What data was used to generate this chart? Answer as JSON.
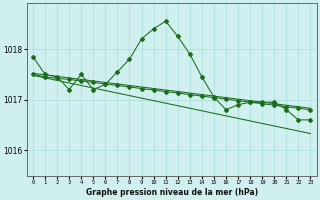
{
  "title": "Graphe pression niveau de la mer (hPa)",
  "background_color": "#d0f0f0",
  "grid_color": "#b0dede",
  "line_color": "#1a6b1a",
  "x_labels": [
    "0",
    "1",
    "2",
    "3",
    "4",
    "5",
    "6",
    "7",
    "8",
    "9",
    "10",
    "11",
    "12",
    "13",
    "14",
    "15",
    "16",
    "17",
    "18",
    "19",
    "20",
    "21",
    "22",
    "23"
  ],
  "ylim": [
    1015.5,
    1018.9
  ],
  "yticks": [
    1016,
    1017,
    1018
  ],
  "series": [
    [
      1017.85,
      1017.5,
      1017.45,
      1017.2,
      1017.5,
      1017.2,
      1017.3,
      1017.55,
      1017.8,
      1018.2,
      1018.4,
      1018.55,
      1018.25,
      1017.9,
      1017.45,
      1017.05,
      1016.8,
      1016.9,
      1016.95,
      1016.95,
      1016.95,
      1016.8,
      1016.6,
      1016.6
    ],
    [
      1017.5,
      1017.45,
      1017.42,
      1017.4,
      1017.37,
      1017.34,
      1017.31,
      1017.28,
      1017.25,
      1017.22,
      1017.19,
      1017.16,
      1017.13,
      1017.1,
      1017.07,
      1017.04,
      1017.01,
      1016.98,
      1016.95,
      1016.92,
      1016.89,
      1016.86,
      1016.83,
      1016.8
    ],
    [
      1017.52,
      1017.49,
      1017.46,
      1017.43,
      1017.4,
      1017.37,
      1017.34,
      1017.31,
      1017.28,
      1017.25,
      1017.22,
      1017.19,
      1017.16,
      1017.13,
      1017.1,
      1017.07,
      1017.04,
      1017.01,
      1016.98,
      1016.95,
      1016.92,
      1016.89,
      1016.86,
      1016.83
    ],
    [
      1017.48,
      1017.43,
      1017.38,
      1017.33,
      1017.28,
      1017.23,
      1017.18,
      1017.13,
      1017.08,
      1017.03,
      1016.98,
      1016.93,
      1016.88,
      1016.83,
      1016.78,
      1016.73,
      1016.68,
      1016.63,
      1016.58,
      1016.53,
      1016.48,
      1016.43,
      1016.38,
      1016.33
    ]
  ]
}
